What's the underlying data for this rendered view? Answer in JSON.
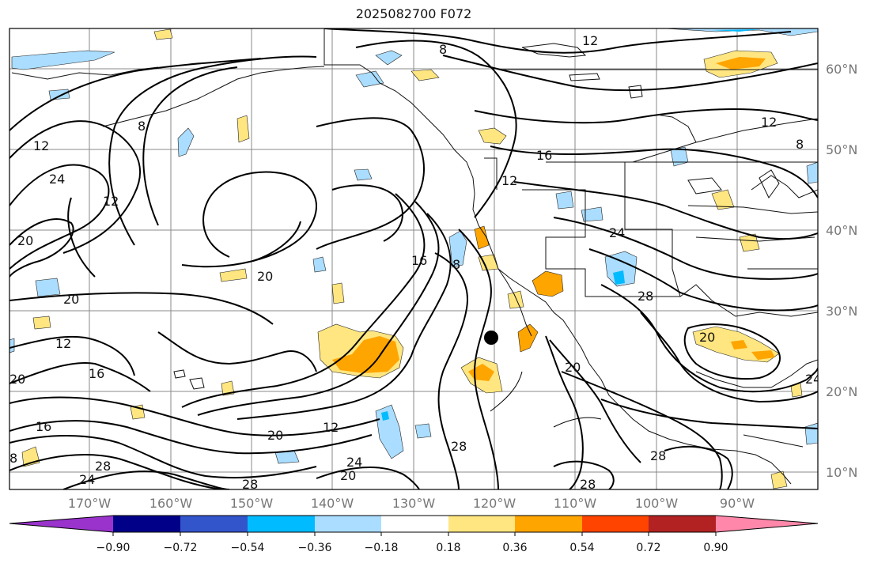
{
  "title": "2025082700 F072",
  "map": {
    "lat_labels": [
      "60°N",
      "50°N",
      "40°N",
      "30°N",
      "20°N",
      "10°N"
    ],
    "lon_labels": [
      "170°W",
      "160°W",
      "150°W",
      "140°W",
      "130°W",
      "120°W",
      "110°W",
      "100°W",
      "90°W"
    ],
    "contour_labels": [
      "8",
      "12",
      "16",
      "20",
      "24",
      "28"
    ],
    "marker": "storm-center-dot"
  },
  "colorbar": {
    "ticks": [
      "−0.90",
      "−0.72",
      "−0.54",
      "−0.36",
      "−0.18",
      "0.18",
      "0.36",
      "0.54",
      "0.72",
      "0.90"
    ],
    "colors": [
      "#9933cc",
      "#000088",
      "#3355cc",
      "#00bbff",
      "#aaddff",
      "#ffffff",
      "#ffe680",
      "#ffa500",
      "#ff4400",
      "#b22222",
      "#ff88aa"
    ]
  }
}
